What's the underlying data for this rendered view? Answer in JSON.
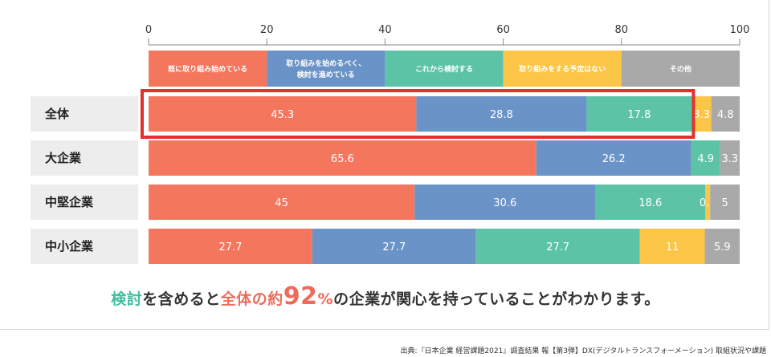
{
  "chart_data": {
    "type": "bar",
    "orientation": "horizontal",
    "stacked": true,
    "xlim": [
      0,
      100
    ],
    "x_ticks": [
      0,
      20,
      40,
      60,
      80,
      100
    ],
    "categories": [
      "全体",
      "大企業",
      "中堅企業",
      "中小企業"
    ],
    "series": [
      {
        "name": "既に取り組み始めている",
        "color": "#f4765d",
        "values": [
          45.3,
          65.6,
          45,
          27.7
        ]
      },
      {
        "name": "取り組みを始めるべく、検討を進めている",
        "color": "#6a93c7",
        "values": [
          28.8,
          26.2,
          30.6,
          27.7
        ]
      },
      {
        "name": "これから検討する",
        "color": "#5cc3a6",
        "values": [
          17.8,
          4.9,
          18.6,
          27.7
        ]
      },
      {
        "name": "取り組みをする予定はない",
        "color": "#fbc548",
        "values": [
          3.3,
          0,
          0.8,
          11
        ]
      },
      {
        "name": "その他",
        "color": "#a9a9a9",
        "values": [
          4.8,
          3.3,
          5,
          5.9
        ]
      }
    ],
    "value_labels": [
      [
        "45.3",
        "28.8",
        "17.8",
        "3.3",
        "4.8"
      ],
      [
        "65.6",
        "26.2",
        "4.9",
        "",
        "3.3"
      ],
      [
        "45",
        "30.6",
        "18.6",
        "0.8",
        "5"
      ],
      [
        "27.7",
        "27.7",
        "27.7",
        "11",
        "5.9"
      ]
    ],
    "highlight": {
      "row": "全体",
      "segments": 3,
      "color": "#e1312e"
    },
    "grid": false
  },
  "message": {
    "p1": "検討",
    "p2": "を含めると",
    "p3": "全体の約",
    "p4": "92",
    "p5": "%",
    "p6": "の企業が関心を持っていることがわかります。"
  },
  "source": "出典:『日本企業 経営課題2021』調査結果 報【第3弾】DX(デジタルトランスフォーメーション) 取組状況や課題"
}
